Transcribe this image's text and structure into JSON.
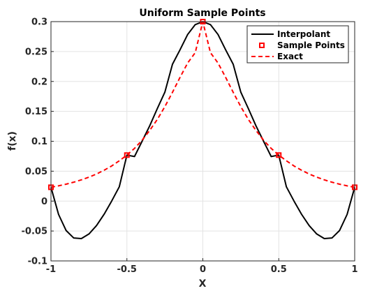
{
  "chart_data": {
    "type": "line",
    "title": "Uniform Sample Points",
    "xlabel": "X",
    "ylabel": "f(x)",
    "xlim": [
      -1,
      1
    ],
    "ylim": [
      -0.1,
      0.3
    ],
    "xticks": [
      -1,
      -0.5,
      0,
      0.5,
      1
    ],
    "xtick_labels": [
      "-1",
      "-0.5",
      "0",
      "0.5",
      "1"
    ],
    "yticks": [
      -0.1,
      -0.05,
      0,
      0.05,
      0.1,
      0.15,
      0.2,
      0.25,
      0.3
    ],
    "ytick_labels": [
      "-0.1",
      "-0.05",
      "0",
      "0.05",
      "0.1",
      "0.15",
      "0.2",
      "0.25",
      "0.3"
    ],
    "grid": true,
    "legend_position": "top-right",
    "series": [
      {
        "name": "Interpolant",
        "style": "solid",
        "color": "#000000",
        "x": [
          -1,
          -0.95,
          -0.9,
          -0.85,
          -0.8,
          -0.75,
          -0.7,
          -0.65,
          -0.6,
          -0.55,
          -0.5,
          -0.45,
          -0.4,
          -0.35,
          -0.3,
          -0.25,
          -0.2,
          -0.15,
          -0.1,
          -0.05,
          0,
          0.05,
          0.1,
          0.15,
          0.2,
          0.25,
          0.3,
          0.35,
          0.4,
          0.45,
          0.5,
          0.55,
          0.6,
          0.65,
          0.7,
          0.75,
          0.8,
          0.85,
          0.9,
          0.95,
          1
        ],
        "y": [
          0.0231,
          -0.0223,
          -0.0493,
          -0.0617,
          -0.0627,
          -0.055,
          -0.0409,
          -0.022,
          0.0002,
          0.024,
          0.0769,
          0.0745,
          0.1,
          0.1257,
          0.1545,
          0.1821,
          0.2287,
          0.253,
          0.2785,
          0.295,
          0.3,
          0.295,
          0.2785,
          0.253,
          0.2287,
          0.1821,
          0.1545,
          0.1257,
          0.1,
          0.0745,
          0.0769,
          0.024,
          0.0002,
          -0.022,
          -0.0409,
          -0.055,
          -0.0627,
          -0.0617,
          -0.0493,
          -0.0223,
          0.0231
        ]
      },
      {
        "name": "Sample Points",
        "style": "markers",
        "color": "#ff0000",
        "x": [
          -1,
          -0.5,
          0,
          0.5,
          1
        ],
        "y": [
          0.0231,
          0.0769,
          0.3,
          0.0769,
          0.0231
        ]
      },
      {
        "name": "Exact",
        "style": "dashed",
        "color": "#ff0000",
        "x": [
          -1,
          -0.95,
          -0.9,
          -0.85,
          -0.8,
          -0.75,
          -0.7,
          -0.65,
          -0.6,
          -0.55,
          -0.5,
          -0.45,
          -0.4,
          -0.35,
          -0.3,
          -0.25,
          -0.2,
          -0.15,
          -0.1,
          -0.05,
          0,
          0.05,
          0.1,
          0.15,
          0.2,
          0.25,
          0.3,
          0.35,
          0.4,
          0.45,
          0.5,
          0.55,
          0.6,
          0.65,
          0.7,
          0.75,
          0.8,
          0.85,
          0.9,
          0.95,
          1
        ],
        "y": [
          0.0231,
          0.0255,
          0.0283,
          0.0316,
          0.0355,
          0.04,
          0.0453,
          0.0516,
          0.0588,
          0.0674,
          0.0769,
          0.0881,
          0.1017,
          0.1181,
          0.1364,
          0.1579,
          0.1818,
          0.2069,
          0.2308,
          0.2482,
          0.3,
          0.2482,
          0.2308,
          0.2069,
          0.1818,
          0.1579,
          0.1364,
          0.1181,
          0.1017,
          0.0881,
          0.0769,
          0.0674,
          0.0588,
          0.0516,
          0.0453,
          0.04,
          0.0355,
          0.0316,
          0.0283,
          0.0255,
          0.0231
        ]
      }
    ]
  }
}
